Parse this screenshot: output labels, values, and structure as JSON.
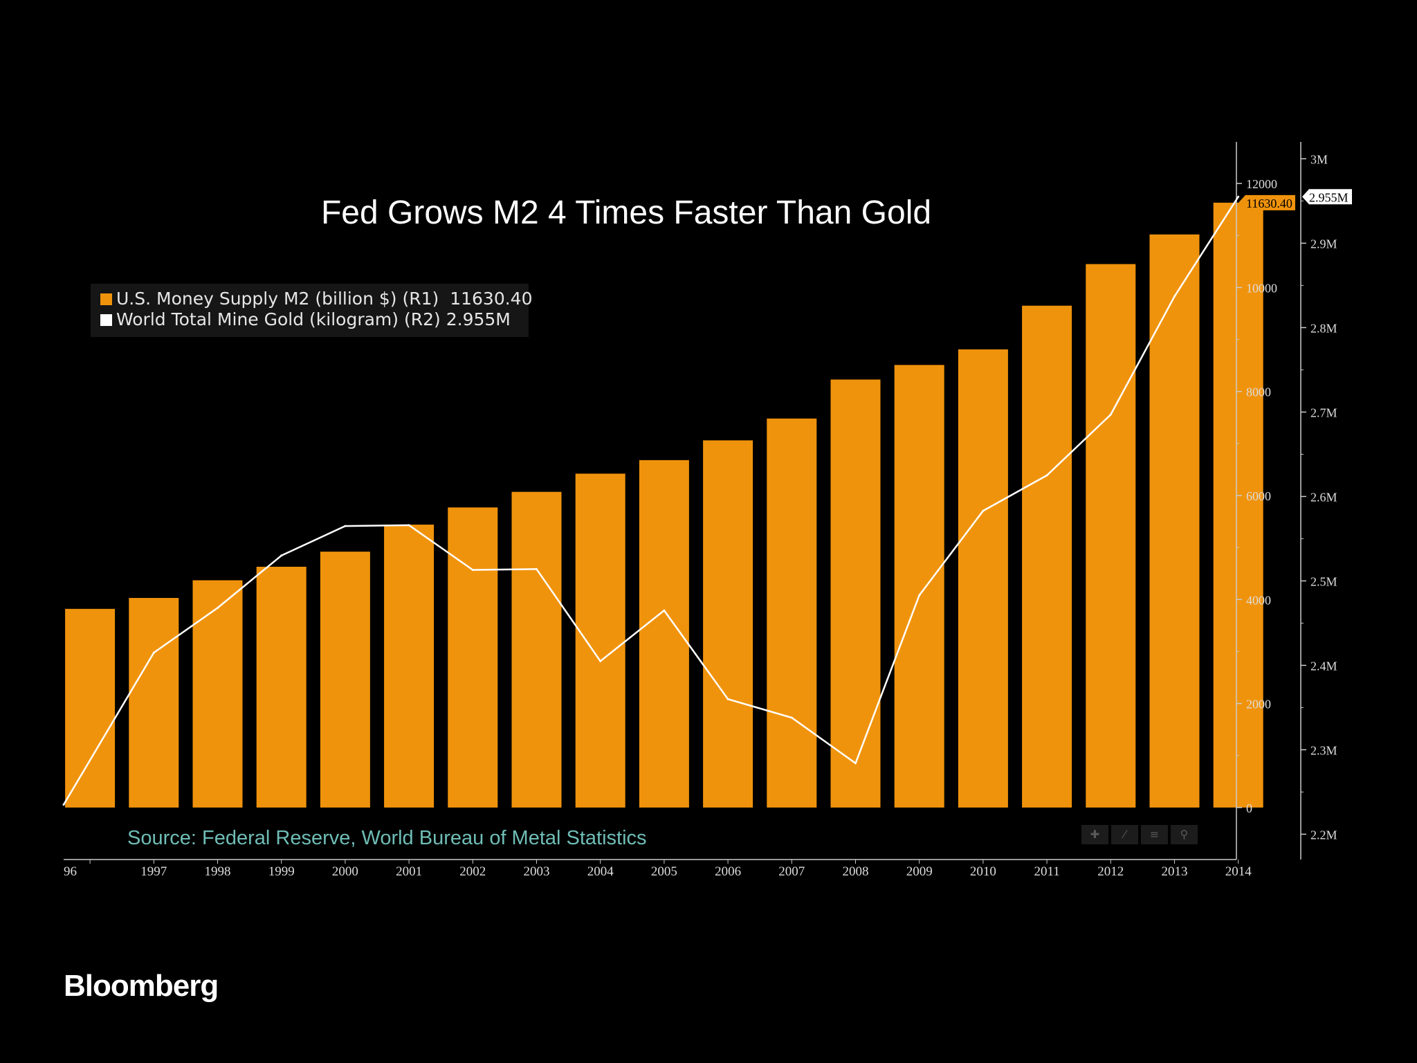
{
  "chart_data": {
    "type": "bar",
    "title": "Fed Grows M2 4 Times Faster Than Gold",
    "categories": [
      "96",
      "1997",
      "1998",
      "1999",
      "2000",
      "2001",
      "2002",
      "2003",
      "2004",
      "2005",
      "2006",
      "2007",
      "2008",
      "2009",
      "2010",
      "2011",
      "2012",
      "2013",
      "2014"
    ],
    "series": [
      {
        "name": "U.S. Money Supply M2 (billion $) (R1)",
        "type": "bar",
        "axis": "R1",
        "color": "#f0930c",
        "last_label": "11630.40",
        "values": [
          3820,
          4030,
          4370,
          4630,
          4920,
          5440,
          5770,
          6070,
          6420,
          6680,
          7060,
          7480,
          8230,
          8510,
          8810,
          9650,
          10450,
          11020,
          11630.4
        ]
      },
      {
        "name": "World Total Mine Gold (kilogram) (R2)",
        "type": "line",
        "axis": "R2",
        "color": "#ffffff",
        "last_label": "2.955M",
        "values": [
          2.235,
          2.415,
          2.468,
          2.53,
          2.565,
          2.566,
          2.513,
          2.514,
          2.405,
          2.465,
          2.36,
          2.338,
          2.284,
          2.483,
          2.583,
          2.625,
          2.697,
          2.837,
          2.955
        ]
      }
    ],
    "r1_axis": {
      "ylim": [
        -1000,
        12800
      ],
      "ticks": [
        0,
        2000,
        4000,
        6000,
        8000,
        10000,
        12000
      ]
    },
    "r2_axis": {
      "ylim": [
        2.17,
        3.02
      ],
      "ticks": [
        2.2,
        2.3,
        2.4,
        2.5,
        2.6,
        2.7,
        2.8,
        2.9,
        3.0
      ],
      "tick_labels": [
        "2.2M",
        "2.3M",
        "2.4M",
        "2.5M",
        "2.6M",
        "2.7M",
        "2.8M",
        "2.9M",
        "3M"
      ]
    },
    "legend_position": "top-left",
    "grid": false
  },
  "legend": {
    "m2_label": "U.S. Money Supply M2 (billion $) (R1)",
    "m2_value": "11630.40",
    "gold_label": "World Total Mine Gold (kilogram) (R2)",
    "gold_value": "2.955M"
  },
  "source": "Source: Federal Reserve, World Bureau of Metal Statistics",
  "brand": "Bloomberg",
  "toolbar": {
    "icons": [
      "crosshair-icon",
      "annotate-icon",
      "list-icon",
      "zoom-icon"
    ]
  }
}
